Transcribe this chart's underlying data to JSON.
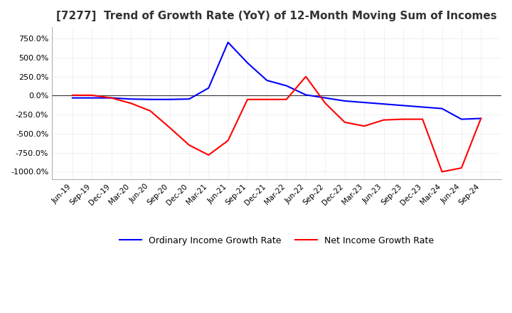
{
  "title": "[7277]  Trend of Growth Rate (YoY) of 12-Month Moving Sum of Incomes",
  "title_fontsize": 11,
  "background_color": "#ffffff",
  "plot_bg_color": "#ffffff",
  "grid_color": "#cccccc",
  "ylim": [
    -1100,
    900
  ],
  "yticks": [
    -1000,
    -750,
    -500,
    -250,
    0,
    250,
    500,
    750
  ],
  "legend_labels": [
    "Ordinary Income Growth Rate",
    "Net Income Growth Rate"
  ],
  "legend_colors": [
    "#0000ff",
    "#ff0000"
  ],
  "x_labels": [
    "Jun-19",
    "Sep-19",
    "Dec-19",
    "Mar-20",
    "Jun-20",
    "Sep-20",
    "Dec-20",
    "Mar-21",
    "Jun-21",
    "Sep-21",
    "Dec-21",
    "Mar-22",
    "Jun-22",
    "Sep-22",
    "Dec-22",
    "Mar-23",
    "Jun-23",
    "Sep-23",
    "Dec-23",
    "Mar-24",
    "Jun-24",
    "Sep-24"
  ],
  "ordinary_income": [
    -30,
    -30,
    -30,
    -45,
    -50,
    -50,
    -45,
    100,
    700,
    430,
    200,
    130,
    10,
    -30,
    -70,
    -90,
    -110,
    -130,
    -150,
    -170,
    -310,
    -300
  ],
  "net_income": [
    5,
    5,
    -30,
    -100,
    -200,
    -420,
    -650,
    -780,
    -590,
    -50,
    -50,
    -50,
    250,
    -100,
    -350,
    -400,
    -320,
    -310,
    -310,
    -1000,
    -950,
    -300
  ]
}
